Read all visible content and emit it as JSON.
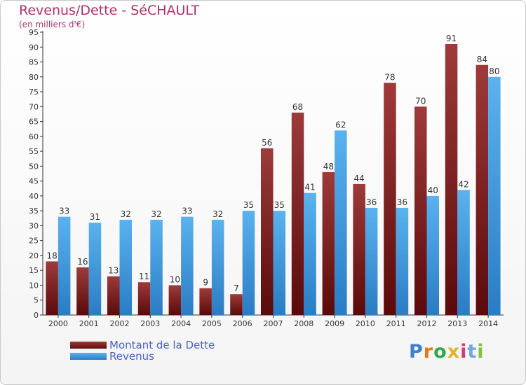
{
  "header": {
    "title": "Revenus/Dette - SéCHAULT",
    "subtitle": "(en milliers d'€)"
  },
  "colors": {
    "dette_dark": "#5a0a0a",
    "dette_light": "#9e3a3a",
    "revenus_dark": "#2a7cc4",
    "revenus_light": "#5ab2ee",
    "title": "#b0306a",
    "legend_text": "#4a63c7"
  },
  "logo": {
    "text": "Proxiti"
  },
  "chart_data": {
    "type": "bar",
    "title": "Revenus/Dette - SéCHAULT",
    "ylabel": "(en milliers d'€)",
    "ylim": [
      0,
      95
    ],
    "ytick_step": 5,
    "grid": false,
    "legend_position": "bottom-left",
    "categories": [
      "2000",
      "2001",
      "2002",
      "2003",
      "2004",
      "2005",
      "2006",
      "2007",
      "2008",
      "2009",
      "2010",
      "2011",
      "2012",
      "2013",
      "2014"
    ],
    "series": [
      {
        "name": "Montant de la Dette",
        "values": [
          18,
          16,
          13,
          11,
          10,
          9,
          7,
          56,
          68,
          48,
          44,
          78,
          70,
          91,
          84
        ]
      },
      {
        "name": "Revenus",
        "values": [
          33,
          31,
          32,
          32,
          33,
          32,
          35,
          35,
          41,
          62,
          36,
          36,
          40,
          42,
          80
        ]
      }
    ]
  }
}
